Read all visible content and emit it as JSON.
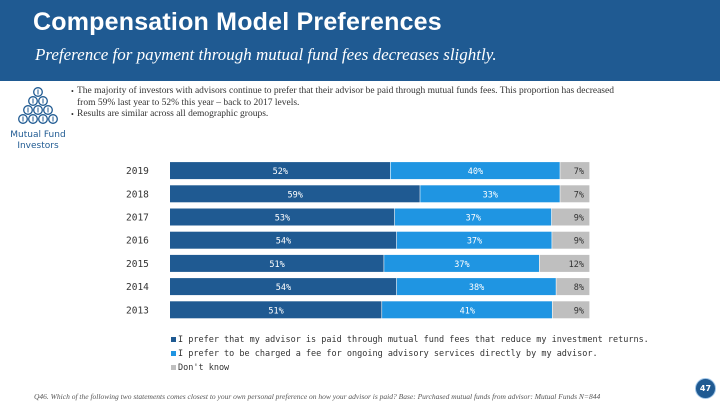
{
  "header": {
    "title": "Compensation Model Preferences",
    "subtitle": "Preference for payment through mutual fund fees decreases slightly."
  },
  "sidebar": {
    "icon_label": "Mutual Fund Investors"
  },
  "bullets": {
    "line1": "The majority of investors with advisors continue to prefer that their advisor be paid through mutual funds fees. This proportion has decreased",
    "line1_cont": "from 59% last year to 52% this year – back to 2017 levels.",
    "line2": "Results are similar across all demographic groups."
  },
  "chart_data": {
    "type": "bar",
    "orientation": "horizontal",
    "stacked": "100%",
    "categories": [
      "2019",
      "2018",
      "2017",
      "2016",
      "2015",
      "2014",
      "2013"
    ],
    "series": [
      {
        "name": "I prefer that my advisor is paid through mutual fund fees that reduce my investment returns.",
        "color": "#1f5a92",
        "values": [
          52,
          59,
          53,
          54,
          51,
          54,
          51
        ]
      },
      {
        "name": "I prefer to be charged a fee for ongoing advisory services directly by my advisor.",
        "color": "#1f95e2",
        "values": [
          40,
          33,
          37,
          37,
          37,
          38,
          41
        ]
      },
      {
        "name": "Don't know",
        "color": "#bfbfbf",
        "values": [
          7,
          7,
          9,
          9,
          12,
          8,
          9
        ]
      }
    ],
    "value_suffix": "%",
    "legend_position": "bottom-left"
  },
  "footnote": "Q46. Which of the following two statements comes closest to your own personal preference on how your advisor is paid? Base: Purchased mutual funds from advisor: Mutual Funds N=844",
  "page_number": "47"
}
